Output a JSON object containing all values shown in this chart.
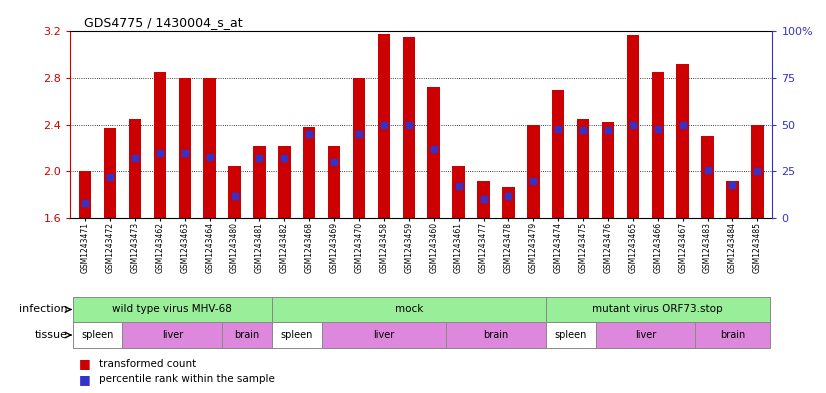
{
  "title": "GDS4775 / 1430004_s_at",
  "samples": [
    "GSM1243471",
    "GSM1243472",
    "GSM1243473",
    "GSM1243462",
    "GSM1243463",
    "GSM1243464",
    "GSM1243480",
    "GSM1243481",
    "GSM1243482",
    "GSM1243468",
    "GSM1243469",
    "GSM1243470",
    "GSM1243458",
    "GSM1243459",
    "GSM1243460",
    "GSM1243461",
    "GSM1243477",
    "GSM1243478",
    "GSM1243479",
    "GSM1243474",
    "GSM1243475",
    "GSM1243476",
    "GSM1243465",
    "GSM1243466",
    "GSM1243467",
    "GSM1243483",
    "GSM1243484",
    "GSM1243485"
  ],
  "transformed_count": [
    2.0,
    2.37,
    2.45,
    2.85,
    2.8,
    2.8,
    2.05,
    2.22,
    2.22,
    2.38,
    2.22,
    2.8,
    3.18,
    3.15,
    2.72,
    2.05,
    1.92,
    1.87,
    2.4,
    2.7,
    2.45,
    2.42,
    3.17,
    2.85,
    2.92,
    2.3,
    1.92,
    2.4
  ],
  "percentile_rank": [
    8,
    22,
    32,
    35,
    35,
    33,
    12,
    32,
    32,
    45,
    30,
    45,
    50,
    50,
    37,
    17,
    10,
    12,
    20,
    48,
    47,
    47,
    50,
    48,
    50,
    26,
    18,
    25
  ],
  "ylim_left": [
    1.6,
    3.2
  ],
  "ylim_right": [
    0,
    100
  ],
  "yticks_left": [
    1.6,
    2.0,
    2.4,
    2.8,
    3.2
  ],
  "yticks_right": [
    0,
    25,
    50,
    75,
    100
  ],
  "bar_color": "#cc0000",
  "dot_color": "#3333cc",
  "inf_groups": [
    {
      "label": "wild type virus MHV-68",
      "start": 0,
      "end": 7
    },
    {
      "label": "mock",
      "start": 8,
      "end": 18
    },
    {
      "label": "mutant virus ORF73.stop",
      "start": 19,
      "end": 27
    }
  ],
  "tissue_groups": [
    {
      "label": "spleen",
      "start": 0,
      "end": 1,
      "color": "#ffffff"
    },
    {
      "label": "liver",
      "start": 2,
      "end": 5,
      "color": "#dd88dd"
    },
    {
      "label": "brain",
      "start": 6,
      "end": 7,
      "color": "#dd88dd"
    },
    {
      "label": "spleen",
      "start": 8,
      "end": 9,
      "color": "#ffffff"
    },
    {
      "label": "liver",
      "start": 10,
      "end": 14,
      "color": "#dd88dd"
    },
    {
      "label": "brain",
      "start": 15,
      "end": 18,
      "color": "#dd88dd"
    },
    {
      "label": "spleen",
      "start": 19,
      "end": 20,
      "color": "#ffffff"
    },
    {
      "label": "liver",
      "start": 21,
      "end": 24,
      "color": "#dd88dd"
    },
    {
      "label": "brain",
      "start": 25,
      "end": 27,
      "color": "#dd88dd"
    }
  ],
  "inf_color": "#99ee99",
  "bg_color": "#ffffff",
  "axis_left_color": "#cc0000",
  "axis_right_color": "#3333cc",
  "border_color": "#888888"
}
